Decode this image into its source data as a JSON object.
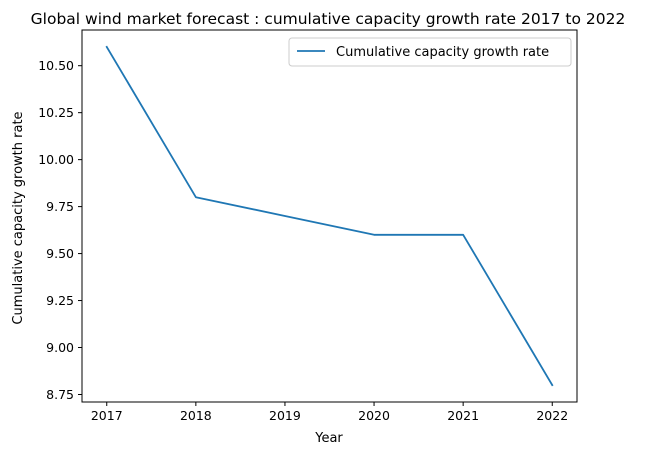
{
  "chart_data": {
    "type": "line",
    "title": "Global wind market forecast : cumulative capacity growth rate 2017 to 2022",
    "xlabel": "Year",
    "ylabel": "Cumulative capacity growth rate",
    "x": [
      "2017",
      "2018",
      "2019",
      "2020",
      "2021",
      "2022"
    ],
    "series": [
      {
        "name": "Cumulative capacity growth rate",
        "values": [
          10.6,
          9.8,
          9.7,
          9.6,
          9.6,
          8.8
        ],
        "color": "#1f77b4"
      }
    ],
    "ylim": [
      8.71,
      10.69
    ],
    "yticks": [
      "8.75",
      "9.00",
      "9.25",
      "9.50",
      "9.75",
      "10.00",
      "10.25",
      "10.50"
    ],
    "legend": "upper right",
    "grid": false
  }
}
